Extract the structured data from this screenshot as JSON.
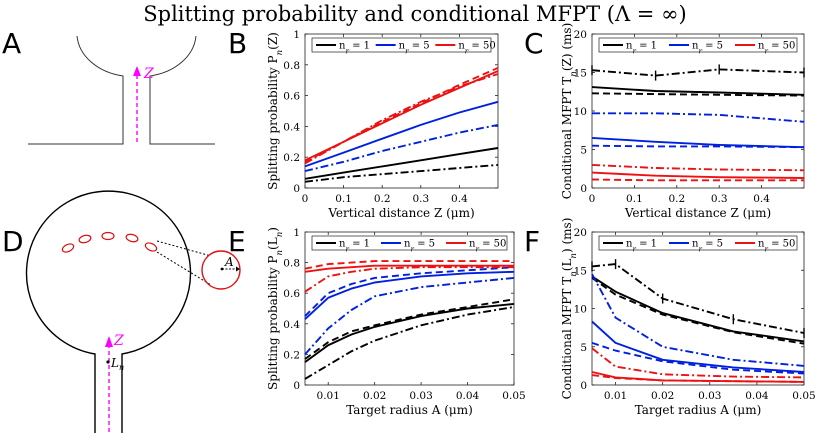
{
  "figure": {
    "title": "Splitting probability and conditional MFPT (Λ = ∞)",
    "panels": [
      "A",
      "B",
      "C",
      "D",
      "E",
      "F"
    ],
    "schematic": {
      "z_label": "Z",
      "a_label": "A",
      "ln_label": "L",
      "ln_sub": "n"
    }
  },
  "colors": {
    "nr1": "#000000",
    "nr5": "#0020e0",
    "nr50": "#ee1111",
    "schematic_axis": "#ff00ff",
    "target": "#e01010"
  },
  "chart_data": [
    {
      "id": "B",
      "type": "line",
      "title": "",
      "xlabel": "Vertical distance Z (μm)",
      "ylabel": "Splitting probability P_n(Z)",
      "xlim": [
        0,
        0.5
      ],
      "ylim": [
        0,
        1
      ],
      "xticks": [
        0,
        0.1,
        0.2,
        0.3,
        0.4
      ],
      "yticks": [
        0,
        0.2,
        0.4,
        0.6,
        0.8,
        1
      ],
      "legend": [
        "n_r = 1",
        "n_r = 5",
        "n_r = 50"
      ],
      "x": [
        0,
        0.1,
        0.2,
        0.3,
        0.4,
        0.5
      ],
      "series": [
        {
          "name": "n_r = 1 solid",
          "group": "nr1",
          "dash": "solid",
          "values": [
            0.06,
            0.1,
            0.14,
            0.18,
            0.22,
            0.26
          ]
        },
        {
          "name": "n_r = 1 dash-dot",
          "group": "nr1",
          "dash": "dashdot",
          "values": [
            0.04,
            0.07,
            0.09,
            0.11,
            0.13,
            0.15
          ]
        },
        {
          "name": "n_r = 5 solid",
          "group": "nr5",
          "dash": "solid",
          "values": [
            0.14,
            0.23,
            0.32,
            0.41,
            0.49,
            0.56
          ]
        },
        {
          "name": "n_r = 5 dash-dot",
          "group": "nr5",
          "dash": "dashdot",
          "values": [
            0.11,
            0.17,
            0.24,
            0.3,
            0.36,
            0.41
          ]
        },
        {
          "name": "n_r = 50 solid",
          "group": "nr50",
          "dash": "solid",
          "values": [
            0.18,
            0.3,
            0.42,
            0.54,
            0.65,
            0.76
          ]
        },
        {
          "name": "n_r = 50 dashed",
          "group": "nr50",
          "dash": "dashed",
          "values": [
            0.17,
            0.3,
            0.43,
            0.55,
            0.67,
            0.78
          ]
        },
        {
          "name": "n_r = 50 dash-dot",
          "group": "nr50",
          "dash": "dashdot",
          "values": [
            0.16,
            0.3,
            0.44,
            0.56,
            0.66,
            0.74
          ]
        }
      ]
    },
    {
      "id": "C",
      "type": "line",
      "title": "",
      "xlabel": "Vertical distance Z (μm)",
      "ylabel": "Conditional MFPT T_n(Z) (ms)",
      "xlim": [
        0,
        0.5
      ],
      "ylim": [
        0,
        20
      ],
      "xticks": [
        0,
        0.1,
        0.2,
        0.3,
        0.4
      ],
      "yticks": [
        0,
        5,
        10,
        15,
        20
      ],
      "legend": [
        "n_r = 1",
        "n_r = 5",
        "n_r = 50"
      ],
      "x": [
        0,
        0.15,
        0.3,
        0.5
      ],
      "series": [
        {
          "name": "n_r = 1 dash-dot",
          "group": "nr1",
          "dash": "dashdot",
          "values": [
            15.3,
            14.6,
            15.4,
            15.0
          ],
          "errorbars": true
        },
        {
          "name": "n_r = 1 solid",
          "group": "nr1",
          "dash": "solid",
          "values": [
            13.1,
            12.6,
            12.4,
            12.1
          ]
        },
        {
          "name": "n_r = 1 dashed",
          "group": "nr1",
          "dash": "dashed",
          "values": [
            12.3,
            12.2,
            12.1,
            12.0
          ]
        },
        {
          "name": "n_r = 5 dash-dot",
          "group": "nr5",
          "dash": "dashdot",
          "values": [
            9.7,
            9.7,
            9.5,
            8.6
          ]
        },
        {
          "name": "n_r = 5 solid",
          "group": "nr5",
          "dash": "solid",
          "values": [
            6.5,
            6.0,
            5.6,
            5.3
          ]
        },
        {
          "name": "n_r = 5 dashed",
          "group": "nr5",
          "dash": "dashed",
          "values": [
            5.5,
            5.4,
            5.4,
            5.3
          ]
        },
        {
          "name": "n_r = 50 dash-dot",
          "group": "nr50",
          "dash": "dashdot",
          "values": [
            3.0,
            2.6,
            2.4,
            2.3
          ]
        },
        {
          "name": "n_r = 50 solid",
          "group": "nr50",
          "dash": "solid",
          "values": [
            2.0,
            1.6,
            1.4,
            1.3
          ]
        },
        {
          "name": "n_r = 50 dashed",
          "group": "nr50",
          "dash": "dashed",
          "values": [
            1.1,
            1.0,
            1.0,
            1.0
          ]
        }
      ]
    },
    {
      "id": "E",
      "type": "line",
      "title": "",
      "xlabel": "Target radius A (μm)",
      "ylabel": "Splitting probability P_n(L_n)",
      "xlim": [
        0.005,
        0.05
      ],
      "ylim": [
        0,
        1
      ],
      "xticks": [
        0.01,
        0.02,
        0.03,
        0.04,
        0.05
      ],
      "yticks": [
        0,
        0.2,
        0.4,
        0.6,
        0.8,
        1
      ],
      "legend": [
        "n_r = 1",
        "n_r = 5",
        "n_r = 50"
      ],
      "x": [
        0.005,
        0.01,
        0.015,
        0.02,
        0.03,
        0.04,
        0.05
      ],
      "series": [
        {
          "name": "n_r = 1 solid",
          "group": "nr1",
          "dash": "solid",
          "values": [
            0.15,
            0.26,
            0.33,
            0.38,
            0.45,
            0.5,
            0.53
          ]
        },
        {
          "name": "n_r = 1 dashed",
          "group": "nr1",
          "dash": "dashed",
          "values": [
            0.17,
            0.28,
            0.35,
            0.39,
            0.46,
            0.51,
            0.56
          ]
        },
        {
          "name": "n_r = 1 dash-dot",
          "group": "nr1",
          "dash": "dashdot",
          "values": [
            0.04,
            0.13,
            0.22,
            0.29,
            0.39,
            0.46,
            0.51
          ]
        },
        {
          "name": "n_r = 5 solid",
          "group": "nr5",
          "dash": "solid",
          "values": [
            0.43,
            0.57,
            0.63,
            0.67,
            0.71,
            0.73,
            0.74
          ]
        },
        {
          "name": "n_r = 5 dashed",
          "group": "nr5",
          "dash": "dashed",
          "values": [
            0.45,
            0.6,
            0.66,
            0.7,
            0.73,
            0.75,
            0.77
          ]
        },
        {
          "name": "n_r = 5 dash-dot",
          "group": "nr5",
          "dash": "dashdot",
          "values": [
            0.2,
            0.37,
            0.49,
            0.58,
            0.64,
            0.67,
            0.7
          ]
        },
        {
          "name": "n_r = 50 solid",
          "group": "nr50",
          "dash": "solid",
          "values": [
            0.74,
            0.76,
            0.77,
            0.78,
            0.78,
            0.78,
            0.78
          ]
        },
        {
          "name": "n_r = 50 dashed",
          "group": "nr50",
          "dash": "dashed",
          "values": [
            0.76,
            0.79,
            0.8,
            0.81,
            0.81,
            0.81,
            0.81
          ]
        },
        {
          "name": "n_r = 50 dash-dot",
          "group": "nr50",
          "dash": "dashdot",
          "values": [
            0.61,
            0.71,
            0.74,
            0.76,
            0.77,
            0.77,
            0.77
          ]
        }
      ]
    },
    {
      "id": "F",
      "type": "line",
      "title": "",
      "xlabel": "Target radius A (μm)",
      "ylabel": "Conditional MFPT T_n(L_n) (ms)",
      "xlim": [
        0.005,
        0.05
      ],
      "ylim": [
        0,
        20
      ],
      "xticks": [
        0.01,
        0.02,
        0.03,
        0.04,
        0.05
      ],
      "yticks": [
        0,
        5,
        10,
        15,
        20
      ],
      "legend": [
        "n_r = 1",
        "n_r = 5",
        "n_r = 50"
      ],
      "x": [
        0.005,
        0.01,
        0.02,
        0.035,
        0.05
      ],
      "series": [
        {
          "name": "n_r = 1 dash-dot",
          "group": "nr1",
          "dash": "dashdot",
          "values": [
            15.5,
            15.8,
            11.3,
            8.6,
            6.8
          ],
          "errorbars": true
        },
        {
          "name": "n_r = 1 solid",
          "group": "nr1",
          "dash": "solid",
          "values": [
            14.2,
            12.2,
            9.4,
            7.0,
            5.7
          ]
        },
        {
          "name": "n_r = 1 dashed",
          "group": "nr1",
          "dash": "dashed",
          "values": [
            14.0,
            11.8,
            9.2,
            6.9,
            5.4
          ]
        },
        {
          "name": "n_r = 5 dash-dot",
          "group": "nr5",
          "dash": "dashdot",
          "values": [
            14.5,
            8.8,
            5.0,
            3.3,
            2.5
          ]
        },
        {
          "name": "n_r = 5 solid",
          "group": "nr5",
          "dash": "solid",
          "values": [
            8.3,
            5.5,
            3.3,
            2.3,
            1.7
          ]
        },
        {
          "name": "n_r = 5 dashed",
          "group": "nr5",
          "dash": "dashed",
          "values": [
            5.5,
            4.5,
            3.1,
            2.0,
            1.5
          ]
        },
        {
          "name": "n_r = 50 dash-dot",
          "group": "nr50",
          "dash": "dashdot",
          "values": [
            4.8,
            2.4,
            1.4,
            1.1,
            1.0
          ]
        },
        {
          "name": "n_r = 50 solid",
          "group": "nr50",
          "dash": "solid",
          "values": [
            1.7,
            1.0,
            0.6,
            0.5,
            0.4
          ]
        },
        {
          "name": "n_r = 50 dashed",
          "group": "nr50",
          "dash": "dashed",
          "values": [
            1.3,
            0.9,
            0.6,
            0.5,
            0.4
          ]
        }
      ]
    }
  ]
}
